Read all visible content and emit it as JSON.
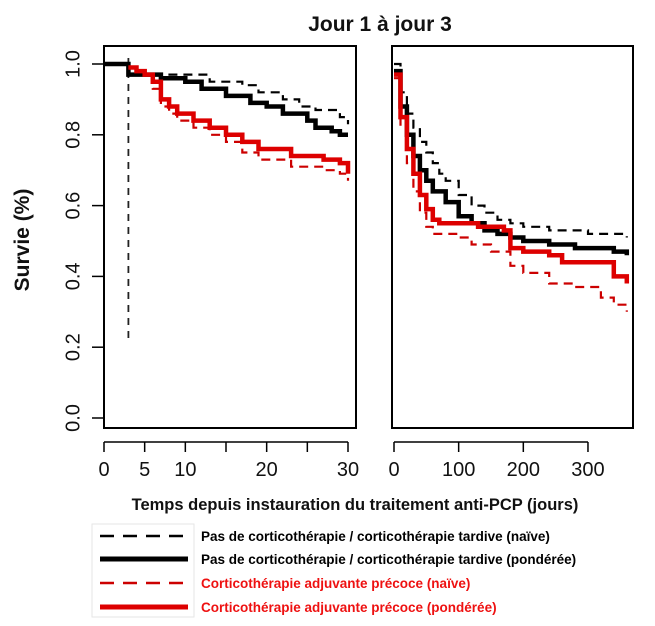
{
  "chart_data": {
    "type": "line",
    "title": "Jour 1 à jour 3",
    "ylabel": "Survie (%)",
    "xlabel": "Temps depuis instauration du traitement anti-PCP (jours)",
    "ylim": [
      0,
      1
    ],
    "yticks": [
      "0.0",
      "0.2",
      "0.4",
      "0.6",
      "0.8",
      "1.0"
    ],
    "grid": false,
    "legend_placement": "bottom",
    "legend": [
      {
        "label": "Pas de corticothérapie / corticothérapie tardive (naïve)",
        "color": "#000000",
        "style": "dashed",
        "text_color": "#000000"
      },
      {
        "label": "Pas de corticothérapie / corticothérapie tardive (pondérée)",
        "color": "#000000",
        "style": "solid",
        "text_color": "#000000"
      },
      {
        "label": "Corticothérapie adjuvante précoce (naïve)",
        "color": "#cc0000",
        "style": "dashed",
        "text_color": "#ee1111"
      },
      {
        "label": "Corticothérapie adjuvante précoce (pondérée)",
        "color": "#dd0000",
        "style": "solid",
        "text_color": "#ee1111"
      }
    ],
    "panels": [
      {
        "xlim": [
          0,
          30
        ],
        "xticks": [
          0,
          5,
          10,
          20,
          30
        ],
        "vline_x": 3,
        "series": [
          {
            "key": "black_dashed",
            "points": [
              [
                0,
                1.0
              ],
              [
                3,
                1.0
              ],
              [
                3,
                0.97
              ],
              [
                12,
                0.97
              ],
              [
                13,
                0.95
              ],
              [
                17,
                0.94
              ],
              [
                19,
                0.92
              ],
              [
                22,
                0.9
              ],
              [
                24,
                0.88
              ],
              [
                26,
                0.87
              ],
              [
                29,
                0.85
              ],
              [
                30,
                0.83
              ]
            ]
          },
          {
            "key": "black_solid",
            "points": [
              [
                0,
                1.0
              ],
              [
                3,
                1.0
              ],
              [
                3,
                0.97
              ],
              [
                6,
                0.97
              ],
              [
                7,
                0.96
              ],
              [
                10,
                0.95
              ],
              [
                12,
                0.93
              ],
              [
                15,
                0.91
              ],
              [
                18,
                0.89
              ],
              [
                20,
                0.88
              ],
              [
                22,
                0.86
              ],
              [
                25,
                0.84
              ],
              [
                26,
                0.82
              ],
              [
                28,
                0.81
              ],
              [
                29,
                0.8
              ],
              [
                30,
                0.8
              ]
            ]
          },
          {
            "key": "red_dashed",
            "points": [
              [
                3,
                0.99
              ],
              [
                4,
                0.98
              ],
              [
                5,
                0.97
              ],
              [
                6,
                0.93
              ],
              [
                7,
                0.88
              ],
              [
                8,
                0.86
              ],
              [
                9,
                0.84
              ],
              [
                11,
                0.82
              ],
              [
                13,
                0.8
              ],
              [
                15,
                0.78
              ],
              [
                17,
                0.75
              ],
              [
                19,
                0.73
              ],
              [
                23,
                0.71
              ],
              [
                27,
                0.7
              ],
              [
                29,
                0.69
              ],
              [
                30,
                0.67
              ]
            ]
          },
          {
            "key": "red_solid",
            "points": [
              [
                3,
                0.99
              ],
              [
                4,
                0.98
              ],
              [
                5,
                0.97
              ],
              [
                6,
                0.95
              ],
              [
                7,
                0.9
              ],
              [
                8,
                0.88
              ],
              [
                9,
                0.86
              ],
              [
                11,
                0.84
              ],
              [
                13,
                0.82
              ],
              [
                15,
                0.8
              ],
              [
                17,
                0.78
              ],
              [
                19,
                0.76
              ],
              [
                23,
                0.74
              ],
              [
                27,
                0.73
              ],
              [
                29,
                0.72
              ],
              [
                30,
                0.69
              ]
            ]
          }
        ]
      },
      {
        "xlim": [
          0,
          365
        ],
        "xticks": [
          0,
          100,
          200,
          300
        ],
        "series": [
          {
            "key": "black_dashed",
            "points": [
              [
                0,
                1.0
              ],
              [
                10,
                0.92
              ],
              [
                20,
                0.86
              ],
              [
                30,
                0.82
              ],
              [
                40,
                0.78
              ],
              [
                50,
                0.75
              ],
              [
                60,
                0.72
              ],
              [
                70,
                0.69
              ],
              [
                80,
                0.67
              ],
              [
                100,
                0.63
              ],
              [
                120,
                0.6
              ],
              [
                140,
                0.58
              ],
              [
                160,
                0.56
              ],
              [
                180,
                0.55
              ],
              [
                200,
                0.54
              ],
              [
                240,
                0.53
              ],
              [
                280,
                0.53
              ],
              [
                300,
                0.52
              ],
              [
                340,
                0.52
              ],
              [
                360,
                0.51
              ]
            ]
          },
          {
            "key": "black_solid",
            "points": [
              [
                0,
                0.98
              ],
              [
                10,
                0.88
              ],
              [
                20,
                0.8
              ],
              [
                30,
                0.74
              ],
              [
                40,
                0.7
              ],
              [
                50,
                0.67
              ],
              [
                60,
                0.64
              ],
              [
                80,
                0.61
              ],
              [
                100,
                0.57
              ],
              [
                120,
                0.55
              ],
              [
                140,
                0.53
              ],
              [
                160,
                0.52
              ],
              [
                180,
                0.51
              ],
              [
                200,
                0.5
              ],
              [
                240,
                0.49
              ],
              [
                280,
                0.48
              ],
              [
                300,
                0.48
              ],
              [
                340,
                0.47
              ],
              [
                360,
                0.46
              ]
            ]
          },
          {
            "key": "red_dashed",
            "points": [
              [
                0,
                0.96
              ],
              [
                10,
                0.82
              ],
              [
                20,
                0.72
              ],
              [
                30,
                0.64
              ],
              [
                40,
                0.58
              ],
              [
                50,
                0.54
              ],
              [
                60,
                0.52
              ],
              [
                100,
                0.51
              ],
              [
                120,
                0.49
              ],
              [
                150,
                0.47
              ],
              [
                180,
                0.43
              ],
              [
                200,
                0.41
              ],
              [
                240,
                0.38
              ],
              [
                280,
                0.37
              ],
              [
                320,
                0.34
              ],
              [
                340,
                0.32
              ],
              [
                360,
                0.3
              ]
            ]
          },
          {
            "key": "red_solid",
            "points": [
              [
                0,
                0.97
              ],
              [
                10,
                0.85
              ],
              [
                20,
                0.76
              ],
              [
                30,
                0.69
              ],
              [
                40,
                0.63
              ],
              [
                50,
                0.59
              ],
              [
                60,
                0.56
              ],
              [
                70,
                0.55
              ],
              [
                110,
                0.55
              ],
              [
                130,
                0.54
              ],
              [
                170,
                0.53
              ],
              [
                180,
                0.48
              ],
              [
                200,
                0.47
              ],
              [
                240,
                0.46
              ],
              [
                260,
                0.44
              ],
              [
                280,
                0.44
              ],
              [
                320,
                0.44
              ],
              [
                340,
                0.4
              ],
              [
                360,
                0.38
              ]
            ]
          }
        ]
      }
    ]
  }
}
